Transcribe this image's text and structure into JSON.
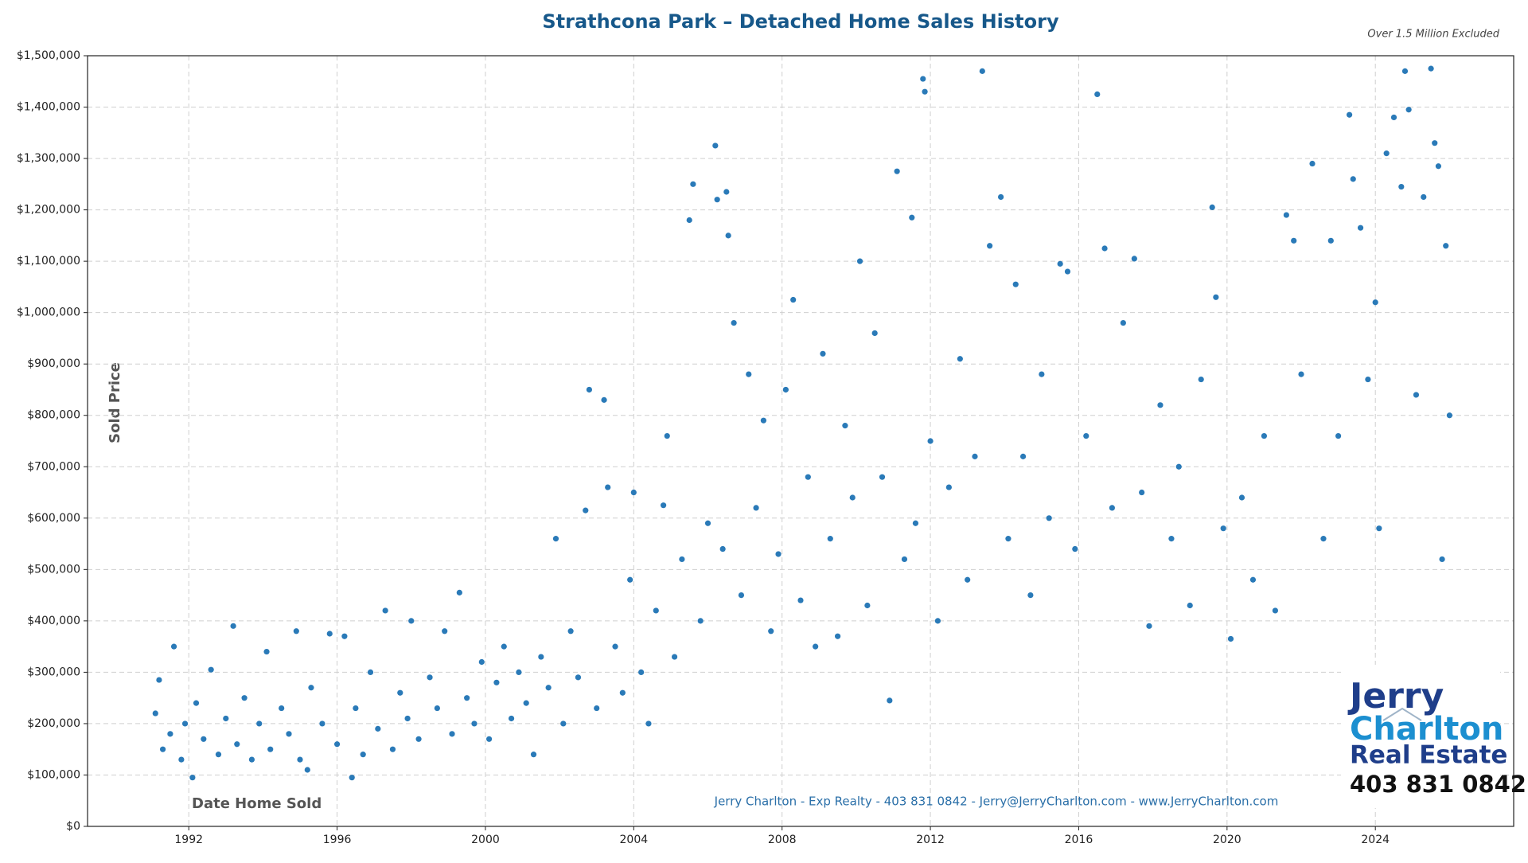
{
  "chart_data": {
    "type": "scatter",
    "title": "Strathcona Park – Detached Home Sales History",
    "subtitle": "Over 1.5 Million Excluded",
    "x_label": "Date Home Sold",
    "y_label": "Sold Price",
    "footer": "Jerry Charlton - Exp Realty - 403 831 0842 - Jerry@JerryCharlton.com - www.JerryCharlton.com",
    "logo": {
      "line1": "Jerry",
      "line2": "Charlton",
      "line3": "Real Estate",
      "phone": "403 831 0842"
    },
    "color": "#2a7ab8",
    "grid": true,
    "xlim": [
      1989.27,
      2027.73
    ],
    "ylim": [
      0,
      1500000
    ],
    "xticks": [
      1992,
      1996,
      2000,
      2004,
      2008,
      2012,
      2016,
      2020,
      2024
    ],
    "yticks": [
      {
        "value": 0,
        "label": "$0"
      },
      {
        "value": 100000,
        "label": "$100,000"
      },
      {
        "value": 200000,
        "label": "$200,000"
      },
      {
        "value": 300000,
        "label": "$300,000"
      },
      {
        "value": 400000,
        "label": "$400,000"
      },
      {
        "value": 500000,
        "label": "$500,000"
      },
      {
        "value": 600000,
        "label": "$600,000"
      },
      {
        "value": 700000,
        "label": "$700,000"
      },
      {
        "value": 800000,
        "label": "$800,000"
      },
      {
        "value": 900000,
        "label": "$900,000"
      },
      {
        "value": 1000000,
        "label": "$1,000,000"
      },
      {
        "value": 1100000,
        "label": "$1,100,000"
      },
      {
        "value": 1200000,
        "label": "$1,200,000"
      },
      {
        "value": 1300000,
        "label": "$1,300,000"
      },
      {
        "value": 1400000,
        "label": "$1,400,000"
      },
      {
        "value": 1500000,
        "label": "$1,500,000"
      }
    ],
    "x": [
      1991.1,
      1991.2,
      1991.3,
      1991.5,
      1991.6,
      1991.8,
      1991.9,
      1992.1,
      1992.2,
      1992.4,
      1992.6,
      1992.8,
      1993.0,
      1993.2,
      1993.3,
      1993.5,
      1993.7,
      1993.9,
      1994.1,
      1994.2,
      1994.5,
      1994.7,
      1994.9,
      1995.0,
      1995.2,
      1995.3,
      1995.6,
      1995.8,
      1996.0,
      1996.2,
      1996.4,
      1996.5,
      1996.7,
      1996.9,
      1997.1,
      1997.3,
      1997.5,
      1997.7,
      1997.9,
      1998.0,
      1998.2,
      1998.5,
      1998.7,
      1998.9,
      1999.1,
      1999.3,
      1999.5,
      1999.7,
      1999.9,
      2000.1,
      2000.3,
      2000.5,
      2000.7,
      2000.9,
      2001.1,
      2001.3,
      2001.5,
      2001.7,
      2001.9,
      2002.1,
      2002.3,
      2002.5,
      2002.7,
      2002.8,
      2003.0,
      2003.2,
      2003.3,
      2003.5,
      2003.7,
      2003.9,
      2004.0,
      2004.2,
      2004.4,
      2004.6,
      2004.8,
      2004.9,
      2005.1,
      2005.3,
      2005.5,
      2005.6,
      2005.8,
      2006.0,
      2006.2,
      2006.25,
      2006.4,
      2006.5,
      2006.55,
      2006.7,
      2006.9,
      2007.1,
      2007.3,
      2007.5,
      2007.7,
      2007.9,
      2008.1,
      2008.3,
      2008.5,
      2008.7,
      2008.9,
      2009.1,
      2009.3,
      2009.5,
      2009.7,
      2009.9,
      2010.1,
      2010.3,
      2010.5,
      2010.7,
      2010.9,
      2011.1,
      2011.3,
      2011.5,
      2011.6,
      2011.8,
      2011.85,
      2012.0,
      2012.2,
      2012.5,
      2012.8,
      2013.0,
      2013.2,
      2013.4,
      2013.6,
      2013.9,
      2014.1,
      2014.3,
      2014.5,
      2014.7,
      2015.0,
      2015.2,
      2015.5,
      2015.7,
      2015.9,
      2016.2,
      2016.5,
      2016.7,
      2016.9,
      2017.2,
      2017.5,
      2017.7,
      2017.9,
      2018.2,
      2018.5,
      2018.7,
      2019.0,
      2019.3,
      2019.6,
      2019.7,
      2019.9,
      2020.1,
      2020.4,
      2020.7,
      2021.0,
      2021.3,
      2021.6,
      2021.8,
      2022.0,
      2022.3,
      2022.6,
      2022.8,
      2023.0,
      2023.3,
      2023.4,
      2023.6,
      2023.8,
      2024.0,
      2024.1,
      2024.3,
      2024.5,
      2024.7,
      2024.8,
      2024.9,
      2025.1,
      2025.3,
      2025.5,
      2025.6,
      2025.7,
      2025.8,
      2025.9,
      2026.0
    ],
    "values": [
      220000,
      285000,
      150000,
      180000,
      350000,
      130000,
      200000,
      95000,
      240000,
      170000,
      305000,
      140000,
      210000,
      390000,
      160000,
      250000,
      130000,
      200000,
      340000,
      150000,
      230000,
      180000,
      380000,
      130000,
      110000,
      270000,
      200000,
      375000,
      160000,
      370000,
      95000,
      230000,
      140000,
      300000,
      190000,
      420000,
      150000,
      260000,
      210000,
      400000,
      170000,
      290000,
      230000,
      380000,
      180000,
      455000,
      250000,
      200000,
      320000,
      170000,
      280000,
      350000,
      210000,
      300000,
      240000,
      140000,
      330000,
      270000,
      560000,
      200000,
      380000,
      290000,
      615000,
      850000,
      230000,
      830000,
      660000,
      350000,
      260000,
      480000,
      650000,
      300000,
      200000,
      420000,
      625000,
      760000,
      330000,
      520000,
      1180000,
      1250000,
      400000,
      590000,
      1325000,
      1220000,
      540000,
      1235000,
      1150000,
      980000,
      450000,
      880000,
      620000,
      790000,
      380000,
      530000,
      850000,
      1025000,
      440000,
      680000,
      350000,
      920000,
      560000,
      370000,
      780000,
      640000,
      1100000,
      430000,
      960000,
      680000,
      245000,
      1275000,
      520000,
      1185000,
      590000,
      1455000,
      1430000,
      750000,
      400000,
      660000,
      910000,
      480000,
      720000,
      1470000,
      1130000,
      1225000,
      560000,
      1055000,
      720000,
      450000,
      880000,
      600000,
      1095000,
      1080000,
      540000,
      760000,
      1425000,
      1125000,
      620000,
      980000,
      1105000,
      650000,
      390000,
      820000,
      560000,
      700000,
      430000,
      870000,
      1205000,
      1030000,
      580000,
      365000,
      640000,
      480000,
      760000,
      420000,
      1190000,
      1140000,
      880000,
      1290000,
      560000,
      1140000,
      760000,
      1385000,
      1260000,
      1165000,
      870000,
      1020000,
      580000,
      1310000,
      1380000,
      1245000,
      1470000,
      1395000,
      840000,
      1225000,
      1475000,
      1330000,
      1285000,
      520000,
      1130000,
      800000
    ]
  }
}
